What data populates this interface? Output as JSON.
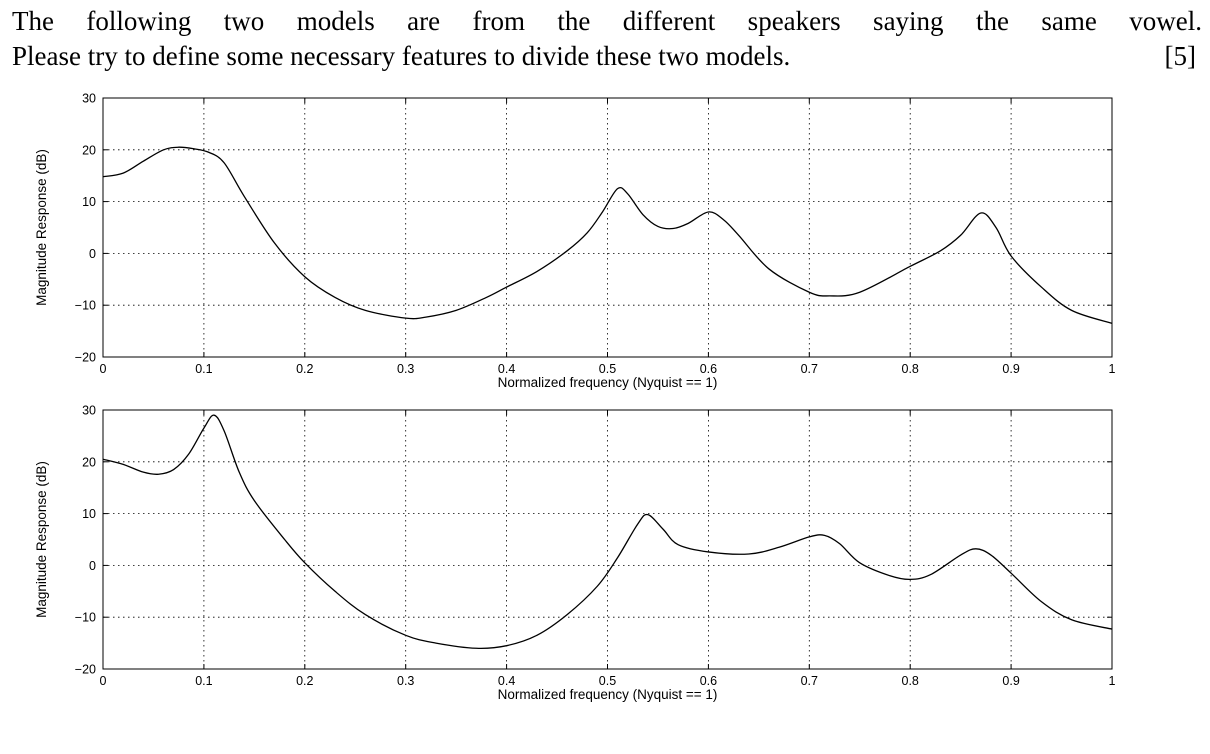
{
  "question": {
    "line1": "The following two models are from the different speakers saying the same vowel.",
    "line2": "Please try to define some necessary features to divide these two models.",
    "marks": "[5]"
  },
  "chart_data": [
    {
      "type": "line",
      "title": "",
      "xlabel": "Normalized frequency (Nyquist == 1)",
      "ylabel": "Magnitude Response (dB)",
      "xlim": [
        0,
        1
      ],
      "ylim": [
        -20,
        30
      ],
      "xticks": [
        0,
        0.1,
        0.2,
        0.3,
        0.4,
        0.5,
        0.6,
        0.7,
        0.8,
        0.9,
        1
      ],
      "xtick_labels": [
        "0",
        "0.1",
        "0.2",
        "0.3",
        "0.4",
        "0.5",
        "0.6",
        "0.7",
        "0.8",
        "0.9",
        "1"
      ],
      "yticks": [
        -20,
        -10,
        0,
        10,
        20,
        30
      ],
      "ytick_labels": [
        "-20",
        "-10",
        "0",
        "10",
        "20",
        "30"
      ],
      "grid": true,
      "series": [
        {
          "x": [
            0,
            0.02,
            0.04,
            0.06,
            0.075,
            0.09,
            0.105,
            0.12,
            0.14,
            0.17,
            0.2,
            0.23,
            0.26,
            0.3,
            0.32,
            0.35,
            0.38,
            0.4,
            0.43,
            0.46,
            0.48,
            0.495,
            0.51,
            0.52,
            0.535,
            0.55,
            0.565,
            0.58,
            0.6,
            0.615,
            0.63,
            0.66,
            0.7,
            0.72,
            0.75,
            0.8,
            0.83,
            0.85,
            0.87,
            0.885,
            0.9,
            0.93,
            0.96,
            1.0
          ],
          "y": [
            14.8,
            15.5,
            17.8,
            20.0,
            20.5,
            20.2,
            19.5,
            17.5,
            11.0,
            2.0,
            -4.5,
            -8.5,
            -11.0,
            -12.5,
            -12.3,
            -11.0,
            -8.5,
            -6.5,
            -3.5,
            0.5,
            4.0,
            8.0,
            12.5,
            11.5,
            7.5,
            5.2,
            4.8,
            5.8,
            8.0,
            6.5,
            3.5,
            -3.0,
            -7.5,
            -8.2,
            -7.5,
            -2.5,
            0.5,
            3.5,
            7.8,
            5.0,
            -0.5,
            -6.5,
            -11.0,
            -13.5
          ]
        }
      ]
    },
    {
      "type": "line",
      "title": "",
      "xlabel": "Normalized frequency (Nyquist == 1)",
      "ylabel": "Magnitude Response (dB)",
      "xlim": [
        0,
        1
      ],
      "ylim": [
        -20,
        30
      ],
      "xticks": [
        0,
        0.1,
        0.2,
        0.3,
        0.4,
        0.5,
        0.6,
        0.7,
        0.8,
        0.9,
        1
      ],
      "xtick_labels": [
        "0",
        "0.1",
        "0.2",
        "0.3",
        "0.4",
        "0.5",
        "0.6",
        "0.7",
        "0.8",
        "0.9",
        "1"
      ],
      "yticks": [
        -20,
        -10,
        0,
        10,
        20,
        30
      ],
      "ytick_labels": [
        "-20",
        "-10",
        "0",
        "10",
        "20",
        "30"
      ],
      "grid": true,
      "series": [
        {
          "x": [
            0,
            0.02,
            0.04,
            0.055,
            0.07,
            0.085,
            0.1,
            0.11,
            0.12,
            0.135,
            0.15,
            0.18,
            0.2,
            0.23,
            0.26,
            0.3,
            0.33,
            0.37,
            0.4,
            0.43,
            0.46,
            0.49,
            0.51,
            0.53,
            0.54,
            0.555,
            0.57,
            0.6,
            0.64,
            0.67,
            0.7,
            0.715,
            0.73,
            0.75,
            0.78,
            0.8,
            0.82,
            0.85,
            0.865,
            0.88,
            0.9,
            0.93,
            0.96,
            1.0
          ],
          "y": [
            20.5,
            19.5,
            18.0,
            17.6,
            18.5,
            21.5,
            26.5,
            29.0,
            26.0,
            18.0,
            12.5,
            5.0,
            0.5,
            -5.0,
            -9.5,
            -13.5,
            -15.0,
            -16.0,
            -15.5,
            -13.5,
            -9.5,
            -4.0,
            1.5,
            8.0,
            9.8,
            7.0,
            4.0,
            2.6,
            2.2,
            3.5,
            5.5,
            5.8,
            4.2,
            0.5,
            -2.0,
            -2.7,
            -1.8,
            2.0,
            3.2,
            2.0,
            -1.5,
            -7.0,
            -10.5,
            -12.3
          ]
        }
      ]
    }
  ]
}
